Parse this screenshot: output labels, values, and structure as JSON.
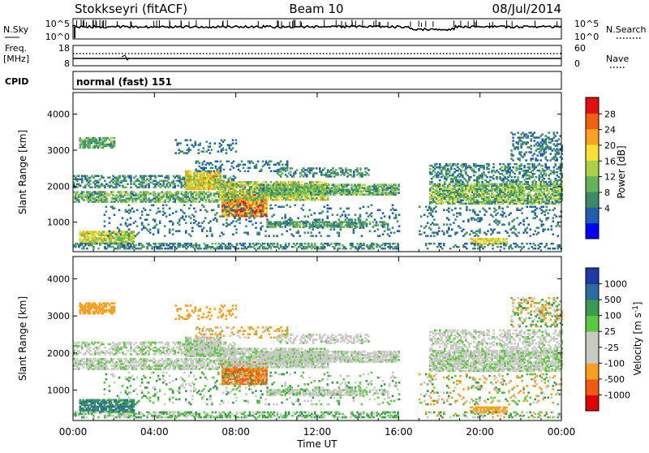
{
  "header": {
    "station": "Stokkseyri (fitACF)",
    "beam": "Beam 10",
    "date": "08/Jul/2014"
  },
  "noise_panel": {
    "left_label": "N.Sky",
    "right_label": "N.Search",
    "left_ticks": [
      "10^5",
      "10^0"
    ],
    "right_ticks": [
      "10^5",
      "10^0"
    ]
  },
  "freq_panel": {
    "left_label_1": "Freq.",
    "left_label_2": "[MHz]",
    "right_label": "Nave",
    "left_ticks": [
      "18",
      "8"
    ],
    "right_ticks": [
      "60",
      "0"
    ]
  },
  "cpid_panel": {
    "label": "CPID",
    "value": "normal (fast) 151"
  },
  "colors": {
    "power_scale": [
      "#0000ff",
      "#1e5fb0",
      "#3d8a6a",
      "#62b35a",
      "#a9d247",
      "#f7e233",
      "#f7a220",
      "#f06010",
      "#e01010"
    ],
    "velocity_scale": [
      "#e00000",
      "#f05a10",
      "#f7a020",
      "#c8c8c4",
      "#c8c8c4",
      "#5cc840",
      "#3a9a50",
      "#2c6aa0",
      "#1e3aa8"
    ]
  },
  "chart_data": [
    {
      "type": "heatmap",
      "title": "Power",
      "ylabel": "Slant Range [km]",
      "xlabel": "Time UT",
      "ylim": [
        180,
        4600
      ],
      "xlim": [
        "00:00",
        "24:00"
      ],
      "y_ticks": [
        "4000",
        "3000",
        "2000",
        "1000"
      ],
      "x_ticks": [
        "00:00",
        "04:00",
        "08:00",
        "12:00",
        "16:00",
        "20:00",
        "00:00"
      ],
      "colorbar_label": "Power [dB]",
      "colorbar_ticks": [
        "28",
        "24",
        "20",
        "16",
        "12",
        "8",
        "4"
      ],
      "colorbar_range": [
        0,
        30
      ]
    },
    {
      "type": "heatmap",
      "title": "Velocity",
      "ylabel": "Slant Range [km]",
      "xlabel": "Time UT",
      "ylim": [
        180,
        4600
      ],
      "xlim": [
        "00:00",
        "24:00"
      ],
      "y_ticks": [
        "4000",
        "3000",
        "2000",
        "1000"
      ],
      "x_ticks": [
        "00:00",
        "04:00",
        "08:00",
        "12:00",
        "16:00",
        "20:00",
        "00:00"
      ],
      "colorbar_label": "Velocity [m s^-1]",
      "colorbar_ticks": [
        "1000",
        "500",
        "100",
        "25",
        "-25",
        "-100",
        "-500",
        "-1000"
      ]
    }
  ]
}
